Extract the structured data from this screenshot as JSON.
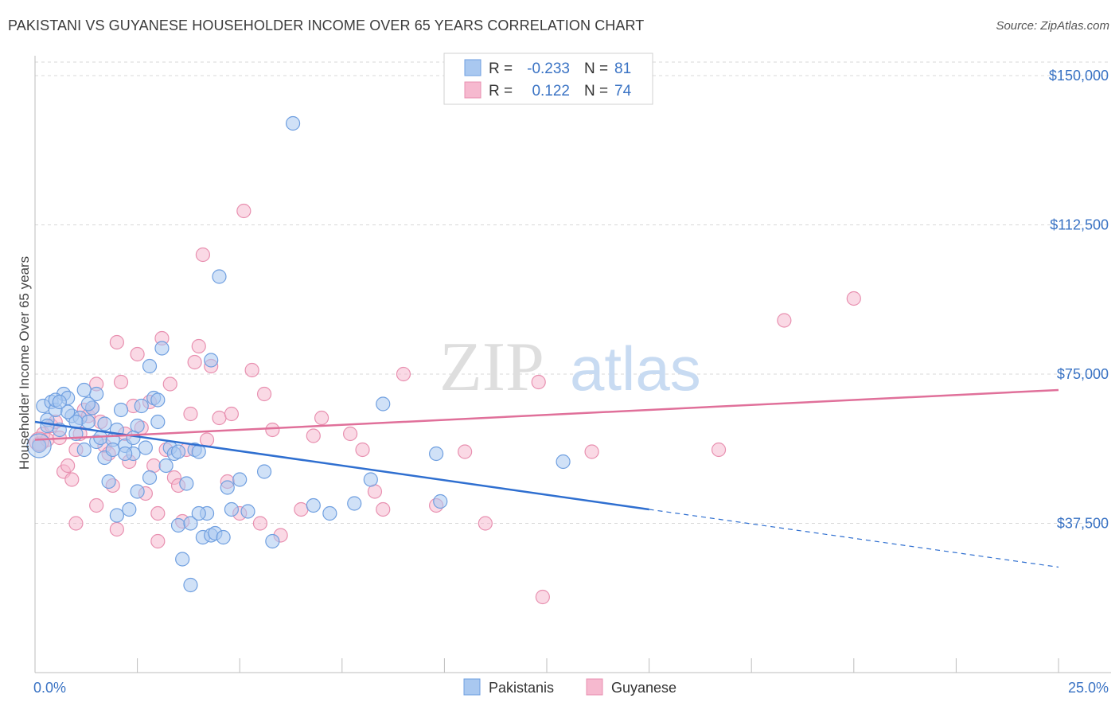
{
  "title": "PAKISTANI VS GUYANESE HOUSEHOLDER INCOME OVER 65 YEARS CORRELATION CHART",
  "source": "Source: ZipAtlas.com",
  "watermark": {
    "zip": "ZIP",
    "atlas": "atlas"
  },
  "colors": {
    "blue_fill": "#a9c8f0",
    "blue_stroke": "#6f9fe0",
    "blue_line": "#2f6fd0",
    "pink_fill": "#f6b9cf",
    "pink_stroke": "#e890b0",
    "pink_line": "#e0709a",
    "grid": "#d8d8d8",
    "tick_label": "#3a73c4"
  },
  "legend": {
    "rows": [
      {
        "r_label": "R =",
        "r_value": "-0.233",
        "n_label": "N =",
        "n_value": "81"
      },
      {
        "r_label": "R =",
        "r_value": "0.122",
        "n_label": "N =",
        "n_value": "74"
      }
    ]
  },
  "bottom_legend": [
    "Pakistanis",
    "Guyanese"
  ],
  "chart_data": {
    "type": "scatter",
    "title": "PAKISTANI VS GUYANESE HOUSEHOLDER INCOME OVER 65 YEARS CORRELATION CHART",
    "xlabel": "",
    "ylabel": "Householder Income Over 65 years",
    "xlim": [
      0,
      25
    ],
    "ylim": [
      0,
      155000
    ],
    "x_tick_labels": [
      "0.0%",
      "25.0%"
    ],
    "y_ticks": [
      37500,
      75000,
      112500,
      150000
    ],
    "y_tick_labels": [
      "$37,500",
      "$75,000",
      "$112,500",
      "$150,000"
    ],
    "grid": "horizontal dashed",
    "legend_position": "top-center",
    "series": [
      {
        "name": "Pakistanis",
        "r": -0.233,
        "n": 81,
        "trend": {
          "x0": 0,
          "y0": 63000,
          "x1": 15,
          "y1": 41000,
          "dash_to_x": 25,
          "dash_to_y": 26500
        },
        "points": [
          [
            0.1,
            57000
          ],
          [
            0.2,
            67000
          ],
          [
            0.3,
            63500
          ],
          [
            0.4,
            68000
          ],
          [
            0.5,
            66000
          ],
          [
            0.6,
            61000
          ],
          [
            0.7,
            70000
          ],
          [
            0.8,
            69000
          ],
          [
            0.9,
            64500
          ],
          [
            1.0,
            60000
          ],
          [
            1.1,
            64000
          ],
          [
            1.2,
            56000
          ],
          [
            1.3,
            63000
          ],
          [
            1.4,
            66500
          ],
          [
            1.5,
            58000
          ],
          [
            1.6,
            59000
          ],
          [
            1.7,
            54000
          ],
          [
            1.8,
            48000
          ],
          [
            1.9,
            58500
          ],
          [
            2.0,
            61000
          ],
          [
            2.1,
            66000
          ],
          [
            2.2,
            57000
          ],
          [
            2.3,
            41000
          ],
          [
            2.4,
            55000
          ],
          [
            2.5,
            62000
          ],
          [
            2.6,
            67000
          ],
          [
            2.7,
            56500
          ],
          [
            2.8,
            77000
          ],
          [
            2.9,
            69000
          ],
          [
            3.0,
            63000
          ],
          [
            3.1,
            81500
          ],
          [
            3.2,
            52000
          ],
          [
            3.3,
            56500
          ],
          [
            3.4,
            55000
          ],
          [
            3.5,
            37000
          ],
          [
            3.6,
            28500
          ],
          [
            3.7,
            47500
          ],
          [
            3.8,
            37500
          ],
          [
            3.9,
            56000
          ],
          [
            4.0,
            55500
          ],
          [
            4.1,
            34000
          ],
          [
            4.2,
            40000
          ],
          [
            4.3,
            34500
          ],
          [
            4.4,
            35000
          ],
          [
            4.5,
            99500
          ],
          [
            4.6,
            34000
          ],
          [
            4.7,
            46500
          ],
          [
            4.8,
            41000
          ],
          [
            5.0,
            48500
          ],
          [
            5.2,
            40500
          ],
          [
            5.6,
            50500
          ],
          [
            5.8,
            33000
          ],
          [
            6.3,
            138000
          ],
          [
            6.8,
            42000
          ],
          [
            7.2,
            40000
          ],
          [
            7.8,
            42500
          ],
          [
            8.2,
            48500
          ],
          [
            8.5,
            67500
          ],
          [
            9.8,
            55000
          ],
          [
            9.9,
            43000
          ],
          [
            12.9,
            53000
          ],
          [
            1.0,
            63000
          ],
          [
            1.5,
            70000
          ],
          [
            2.0,
            39500
          ],
          [
            2.5,
            45500
          ],
          [
            0.3,
            62000
          ],
          [
            0.5,
            68500
          ],
          [
            0.8,
            65500
          ],
          [
            1.2,
            71000
          ],
          [
            3.0,
            68500
          ],
          [
            1.7,
            62500
          ],
          [
            2.2,
            55000
          ],
          [
            3.5,
            55500
          ],
          [
            4.0,
            40000
          ],
          [
            2.8,
            49000
          ],
          [
            1.9,
            56000
          ],
          [
            0.6,
            68000
          ],
          [
            2.4,
            59000
          ],
          [
            3.8,
            22000
          ],
          [
            4.3,
            78500
          ],
          [
            1.3,
            67500
          ]
        ]
      },
      {
        "name": "Guyanese",
        "r": 0.122,
        "n": 74,
        "trend": {
          "x0": 0,
          "y0": 58500,
          "x1": 25,
          "y1": 71000
        },
        "points": [
          [
            0.1,
            57500
          ],
          [
            0.2,
            60000
          ],
          [
            0.3,
            58500
          ],
          [
            0.4,
            62000
          ],
          [
            0.5,
            63000
          ],
          [
            0.6,
            59000
          ],
          [
            0.7,
            50500
          ],
          [
            0.8,
            52000
          ],
          [
            0.9,
            48500
          ],
          [
            1.0,
            56000
          ],
          [
            1.1,
            60000
          ],
          [
            1.2,
            66000
          ],
          [
            1.3,
            64500
          ],
          [
            1.4,
            66500
          ],
          [
            1.5,
            72500
          ],
          [
            1.6,
            63000
          ],
          [
            1.7,
            57000
          ],
          [
            1.8,
            55000
          ],
          [
            1.9,
            47000
          ],
          [
            2.0,
            83000
          ],
          [
            2.1,
            73000
          ],
          [
            2.2,
            60000
          ],
          [
            2.3,
            53000
          ],
          [
            2.4,
            67000
          ],
          [
            2.5,
            80000
          ],
          [
            2.6,
            61500
          ],
          [
            2.7,
            45000
          ],
          [
            2.8,
            68000
          ],
          [
            2.9,
            52000
          ],
          [
            3.0,
            33000
          ],
          [
            3.1,
            84000
          ],
          [
            3.2,
            56000
          ],
          [
            3.3,
            72500
          ],
          [
            3.4,
            49000
          ],
          [
            3.5,
            47000
          ],
          [
            3.6,
            38000
          ],
          [
            3.7,
            56000
          ],
          [
            3.8,
            65000
          ],
          [
            3.9,
            78000
          ],
          [
            4.0,
            82000
          ],
          [
            4.1,
            105000
          ],
          [
            4.2,
            58500
          ],
          [
            4.3,
            77000
          ],
          [
            4.5,
            64000
          ],
          [
            4.8,
            65000
          ],
          [
            5.0,
            40000
          ],
          [
            5.3,
            76000
          ],
          [
            5.6,
            70000
          ],
          [
            5.8,
            61000
          ],
          [
            6.0,
            34500
          ],
          [
            6.5,
            41000
          ],
          [
            7.0,
            64000
          ],
          [
            7.7,
            60000
          ],
          [
            8.0,
            56000
          ],
          [
            8.3,
            45500
          ],
          [
            8.5,
            41000
          ],
          [
            9.0,
            75000
          ],
          [
            9.8,
            42000
          ],
          [
            10.5,
            55500
          ],
          [
            11.0,
            37500
          ],
          [
            12.3,
            73000
          ],
          [
            13.6,
            55500
          ],
          [
            16.7,
            56000
          ],
          [
            18.3,
            88500
          ],
          [
            20.0,
            94000
          ],
          [
            1.0,
            37500
          ],
          [
            1.5,
            42000
          ],
          [
            2.0,
            36000
          ],
          [
            3.0,
            40000
          ],
          [
            5.5,
            37500
          ],
          [
            6.8,
            59500
          ],
          [
            12.4,
            19000
          ],
          [
            4.7,
            48000
          ],
          [
            5.1,
            116000
          ]
        ]
      }
    ]
  }
}
